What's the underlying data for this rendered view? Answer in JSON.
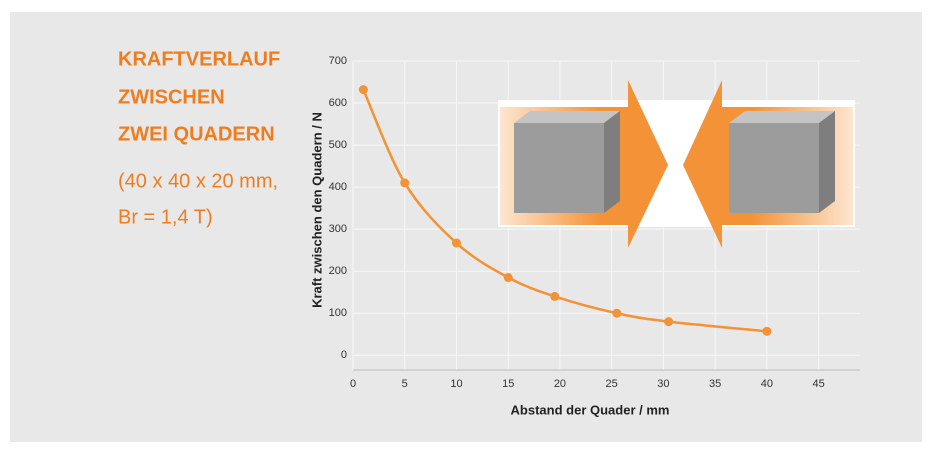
{
  "text": {
    "title_lines": [
      "KRAFTVERLAUF",
      "ZWISCHEN",
      "ZWEI QUADERN"
    ],
    "subtitle_lines": [
      "(40 x 40 x 20 mm,",
      "Br = 1,4 T)"
    ]
  },
  "chart_data": {
    "type": "line",
    "x_label": "Abstand der Quader / mm",
    "y_label": "Kraft zwischen den Quadern / N",
    "x": [
      1,
      5,
      10,
      15,
      19.5,
      25.5,
      30.5,
      40
    ],
    "values": [
      632,
      410,
      267,
      185,
      140,
      100,
      80,
      57
    ],
    "color": "#f39237",
    "markers": true,
    "grid": true,
    "xlim": [
      0,
      49
    ],
    "xticks": [
      0,
      5,
      10,
      15,
      20,
      25,
      30,
      35,
      40,
      45
    ],
    "ylim": [
      -35,
      700
    ],
    "yticks": [
      0,
      100,
      200,
      300,
      400,
      500,
      600,
      700
    ]
  }
}
